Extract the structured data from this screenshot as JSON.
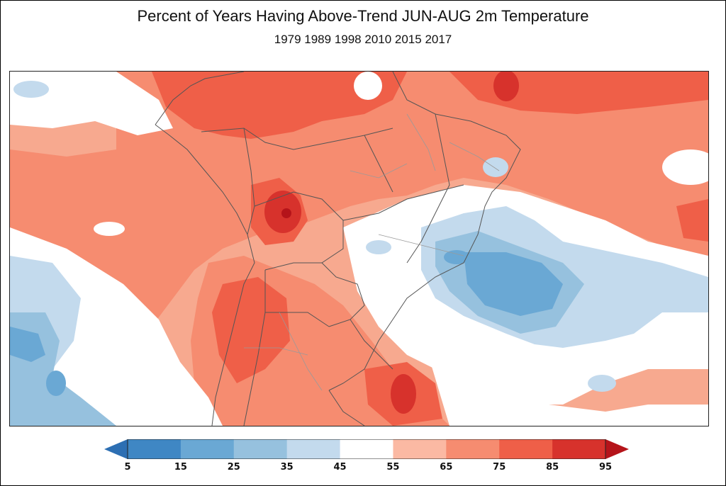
{
  "figure": {
    "title": "Percent of Years Having Above-Trend JUN-AUG 2m Temperature",
    "subtitle": "1979 1989 1998 2010 2015 2017"
  },
  "colorbar": {
    "ticks": [
      "5",
      "15",
      "25",
      "35",
      "45",
      "55",
      "65",
      "75",
      "85",
      "95"
    ],
    "colors": [
      "#3f87c4",
      "#6aa8d4",
      "#96c1de",
      "#c3daed",
      "#ffffff",
      "#fbb9a3",
      "#f68c70",
      "#ef5f48",
      "#d7322c"
    ],
    "under_color": "#2d6fb3",
    "over_color": "#b5141a"
  },
  "map_colors": {
    "base": "#f7a98f",
    "mid": "#f68c70",
    "high": "#ef5f48",
    "max": "#d7322c",
    "neutral": "#ffffff",
    "cool_light": "#c3daed",
    "cool": "#96c1de",
    "cool_dark": "#6aa8d4",
    "border": "#555555"
  }
}
